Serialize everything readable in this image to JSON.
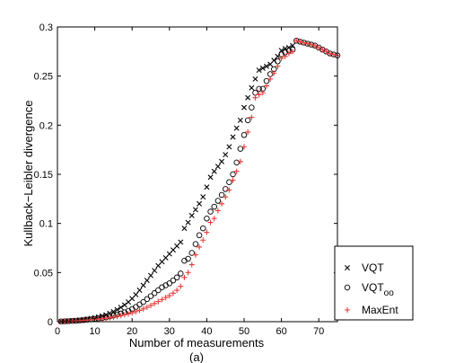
{
  "chart_data": {
    "type": "scatter",
    "xlabel": "Number of measurements",
    "ylabel": "Kullback−Leibler divergence",
    "caption": "(a)",
    "xlim": [
      0,
      75
    ],
    "ylim": [
      0,
      0.3
    ],
    "xticks": [
      "0",
      "10",
      "20",
      "30",
      "40",
      "50",
      "60",
      "70"
    ],
    "yticks": [
      "0",
      "0.05",
      "0.1",
      "0.15",
      "0.2",
      "0.25",
      "0.3"
    ],
    "grid": false,
    "legend_position": "bottom-right",
    "series": [
      {
        "name": "VQT",
        "name_sub": "",
        "marker": "x",
        "color": "#000000",
        "points": [
          [
            1,
            0.0002
          ],
          [
            2,
            0.0004
          ],
          [
            3,
            0.0007
          ],
          [
            4,
            0.001
          ],
          [
            5,
            0.0013
          ],
          [
            6,
            0.0017
          ],
          [
            7,
            0.0022
          ],
          [
            8,
            0.0027
          ],
          [
            9,
            0.0033
          ],
          [
            10,
            0.004
          ],
          [
            11,
            0.0048
          ],
          [
            12,
            0.0058
          ],
          [
            13,
            0.007
          ],
          [
            14,
            0.0085
          ],
          [
            15,
            0.0102
          ],
          [
            16,
            0.0122
          ],
          [
            17,
            0.0145
          ],
          [
            18,
            0.017
          ],
          [
            19,
            0.02
          ],
          [
            20,
            0.0235
          ],
          [
            21,
            0.0275
          ],
          [
            22,
            0.032
          ],
          [
            23,
            0.037
          ],
          [
            24,
            0.042
          ],
          [
            25,
            0.047
          ],
          [
            26,
            0.052
          ],
          [
            27,
            0.057
          ],
          [
            28,
            0.061
          ],
          [
            29,
            0.065
          ],
          [
            30,
            0.069
          ],
          [
            31,
            0.073
          ],
          [
            32,
            0.077
          ],
          [
            33,
            0.081
          ],
          [
            34,
            0.095
          ],
          [
            35,
            0.101
          ],
          [
            36,
            0.108
          ],
          [
            37,
            0.114
          ],
          [
            38,
            0.12
          ],
          [
            39,
            0.127
          ],
          [
            40,
            0.137
          ],
          [
            41,
            0.147
          ],
          [
            42,
            0.153
          ],
          [
            43,
            0.158
          ],
          [
            44,
            0.163
          ],
          [
            45,
            0.17
          ],
          [
            46,
            0.178
          ],
          [
            47,
            0.188
          ],
          [
            48,
            0.197
          ],
          [
            49,
            0.205
          ],
          [
            50,
            0.218
          ],
          [
            51,
            0.228
          ],
          [
            52,
            0.238
          ],
          [
            53,
            0.247
          ],
          [
            54,
            0.256
          ],
          [
            55,
            0.258
          ],
          [
            56,
            0.26
          ],
          [
            57,
            0.262
          ],
          [
            58,
            0.266
          ],
          [
            59,
            0.27
          ],
          [
            60,
            0.276
          ],
          [
            61,
            0.278
          ],
          [
            62,
            0.279
          ],
          [
            63,
            0.281
          ]
        ]
      },
      {
        "name": "VQT",
        "name_sub": "oo",
        "marker": "circle",
        "color": "#000000",
        "points": [
          [
            1,
            0.0002
          ],
          [
            2,
            0.0003
          ],
          [
            3,
            0.0005
          ],
          [
            4,
            0.0007
          ],
          [
            5,
            0.0009
          ],
          [
            6,
            0.0012
          ],
          [
            7,
            0.0015
          ],
          [
            8,
            0.0019
          ],
          [
            9,
            0.0023
          ],
          [
            10,
            0.0027
          ],
          [
            11,
            0.0032
          ],
          [
            12,
            0.0038
          ],
          [
            13,
            0.0045
          ],
          [
            14,
            0.0053
          ],
          [
            15,
            0.0062
          ],
          [
            16,
            0.0072
          ],
          [
            17,
            0.0083
          ],
          [
            18,
            0.0095
          ],
          [
            19,
            0.011
          ],
          [
            20,
            0.0128
          ],
          [
            21,
            0.015
          ],
          [
            22,
            0.0175
          ],
          [
            23,
            0.02
          ],
          [
            24,
            0.023
          ],
          [
            25,
            0.026
          ],
          [
            26,
            0.029
          ],
          [
            27,
            0.032
          ],
          [
            28,
            0.035
          ],
          [
            29,
            0.037
          ],
          [
            30,
            0.039
          ],
          [
            31,
            0.042
          ],
          [
            32,
            0.045
          ],
          [
            33,
            0.049
          ],
          [
            34,
            0.062
          ],
          [
            35,
            0.064
          ],
          [
            36,
            0.07
          ],
          [
            37,
            0.079
          ],
          [
            38,
            0.088
          ],
          [
            39,
            0.095
          ],
          [
            40,
            0.105
          ],
          [
            41,
            0.112
          ],
          [
            42,
            0.117
          ],
          [
            43,
            0.123
          ],
          [
            44,
            0.129
          ],
          [
            45,
            0.135
          ],
          [
            46,
            0.142
          ],
          [
            47,
            0.15
          ],
          [
            48,
            0.162
          ],
          [
            49,
            0.176
          ],
          [
            50,
            0.19
          ],
          [
            51,
            0.205
          ],
          [
            52,
            0.218
          ],
          [
            53,
            0.233
          ],
          [
            54,
            0.237
          ],
          [
            55,
            0.237
          ],
          [
            56,
            0.245
          ],
          [
            57,
            0.252
          ],
          [
            58,
            0.257
          ],
          [
            59,
            0.265
          ],
          [
            60,
            0.272
          ],
          [
            61,
            0.274
          ],
          [
            62,
            0.276
          ],
          [
            63,
            0.277
          ],
          [
            64,
            0.286
          ],
          [
            65,
            0.285
          ],
          [
            66,
            0.284
          ],
          [
            67,
            0.283
          ],
          [
            68,
            0.282
          ],
          [
            69,
            0.281
          ],
          [
            70,
            0.279
          ],
          [
            71,
            0.277
          ],
          [
            72,
            0.275
          ],
          [
            73,
            0.273
          ],
          [
            74,
            0.272
          ],
          [
            75,
            0.271
          ]
        ]
      },
      {
        "name": "MaxEnt",
        "name_sub": "",
        "marker": "plus",
        "color": "#e83a3a",
        "points": [
          [
            1,
            0.0001
          ],
          [
            2,
            0.0002
          ],
          [
            3,
            0.0004
          ],
          [
            4,
            0.0006
          ],
          [
            5,
            0.0008
          ],
          [
            6,
            0.001
          ],
          [
            7,
            0.0013
          ],
          [
            8,
            0.0016
          ],
          [
            9,
            0.0019
          ],
          [
            10,
            0.0023
          ],
          [
            11,
            0.0027
          ],
          [
            12,
            0.0031
          ],
          [
            13,
            0.0036
          ],
          [
            14,
            0.0041
          ],
          [
            15,
            0.0047
          ],
          [
            16,
            0.0054
          ],
          [
            17,
            0.0062
          ],
          [
            18,
            0.007
          ],
          [
            19,
            0.0079
          ],
          [
            20,
            0.009
          ],
          [
            21,
            0.0102
          ],
          [
            22,
            0.0115
          ],
          [
            23,
            0.013
          ],
          [
            24,
            0.0147
          ],
          [
            25,
            0.0165
          ],
          [
            26,
            0.0185
          ],
          [
            27,
            0.0205
          ],
          [
            28,
            0.0225
          ],
          [
            29,
            0.0245
          ],
          [
            30,
            0.0265
          ],
          [
            31,
            0.029
          ],
          [
            32,
            0.032
          ],
          [
            33,
            0.036
          ],
          [
            34,
            0.045
          ],
          [
            35,
            0.05
          ],
          [
            36,
            0.058
          ],
          [
            37,
            0.068
          ],
          [
            38,
            0.076
          ],
          [
            39,
            0.083
          ],
          [
            40,
            0.091
          ],
          [
            41,
            0.101
          ],
          [
            42,
            0.105
          ],
          [
            43,
            0.113
          ],
          [
            44,
            0.12
          ],
          [
            45,
            0.127
          ],
          [
            46,
            0.134
          ],
          [
            47,
            0.144
          ],
          [
            48,
            0.153
          ],
          [
            49,
            0.163
          ],
          [
            50,
            0.178
          ],
          [
            51,
            0.193
          ],
          [
            52,
            0.208
          ],
          [
            53,
            0.228
          ],
          [
            54,
            0.231
          ],
          [
            55,
            0.233
          ],
          [
            56,
            0.24
          ],
          [
            57,
            0.247
          ],
          [
            58,
            0.253
          ],
          [
            59,
            0.26
          ],
          [
            60,
            0.268
          ],
          [
            61,
            0.27
          ],
          [
            62,
            0.273
          ],
          [
            63,
            0.275
          ],
          [
            64,
            0.286
          ],
          [
            65,
            0.285
          ],
          [
            66,
            0.284
          ],
          [
            67,
            0.283
          ],
          [
            68,
            0.282
          ],
          [
            69,
            0.281
          ],
          [
            70,
            0.279
          ],
          [
            71,
            0.277
          ],
          [
            72,
            0.275
          ],
          [
            73,
            0.273
          ],
          [
            74,
            0.272
          ],
          [
            75,
            0.271
          ]
        ]
      }
    ]
  }
}
